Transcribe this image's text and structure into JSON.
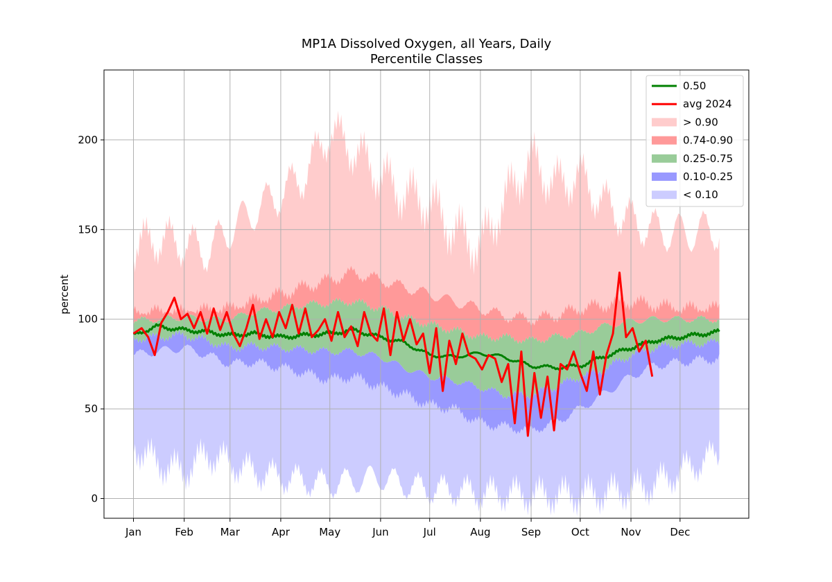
{
  "chart_data": {
    "type": "area",
    "title": "MP1A Dissolved Oxygen, all Years, Daily",
    "subtitle": "Percentile Classes",
    "ylabel": "percent",
    "xlabel": "",
    "ylim": [
      -11,
      239
    ],
    "yticks": [
      0,
      50,
      100,
      150,
      200
    ],
    "months": [
      "Jan",
      "Feb",
      "Mar",
      "Apr",
      "May",
      "Jun",
      "Jul",
      "Aug",
      "Sep",
      "Oct",
      "Nov",
      "Dec"
    ],
    "grid": true,
    "legend_position": "top-right",
    "legend": [
      {
        "label": "0.50",
        "kind": "line",
        "color": "#008000"
      },
      {
        "label": "avg 2024",
        "kind": "line",
        "color": "#ff0000"
      },
      {
        "label": "> 0.90",
        "kind": "patch",
        "color": "#ffcccc"
      },
      {
        "label": "0.74-0.90",
        "kind": "patch",
        "color": "#ff9999"
      },
      {
        "label": "0.25-0.75",
        "kind": "patch",
        "color": "#99cc99"
      },
      {
        "label": "0.10-0.25",
        "kind": "patch",
        "color": "#9999ff"
      },
      {
        "label": "< 0.10",
        "kind": "patch",
        "color": "#ccccff"
      }
    ],
    "control_points": {
      "day": [
        1,
        15,
        32,
        46,
        60,
        74,
        91,
        105,
        121,
        135,
        152,
        166,
        182,
        196,
        213,
        227,
        244,
        258,
        274,
        288,
        305,
        319,
        335,
        359
      ],
      "p00": [
        30,
        20,
        15,
        25,
        20,
        15,
        12,
        10,
        8,
        10,
        12,
        8,
        5,
        5,
        3,
        3,
        2,
        2,
        2,
        3,
        5,
        8,
        15,
        25
      ],
      "p10": [
        80,
        82,
        84,
        80,
        75,
        76,
        73,
        70,
        66,
        68,
        62,
        58,
        52,
        50,
        42,
        40,
        38,
        42,
        50,
        58,
        68,
        74,
        76,
        78
      ],
      "p25": [
        89,
        90,
        91,
        88,
        84,
        85,
        84,
        83,
        82,
        82,
        79,
        73,
        68,
        66,
        62,
        58,
        58,
        62,
        68,
        72,
        80,
        84,
        86,
        87
      ],
      "p75": [
        99,
        100,
        101,
        100,
        100,
        104,
        106,
        108,
        109,
        110,
        106,
        101,
        97,
        94,
        90,
        90,
        88,
        90,
        92,
        96,
        99,
        100,
        100,
        100
      ],
      "p90": [
        104,
        104,
        104,
        105,
        106,
        110,
        114,
        118,
        122,
        126,
        122,
        118,
        114,
        110,
        106,
        102,
        100,
        102,
        106,
        108,
        110,
        108,
        106,
        106
      ],
      "p100": [
        140,
        145,
        142,
        138,
        150,
        160,
        170,
        180,
        205,
        195,
        180,
        170,
        165,
        150,
        140,
        165,
        190,
        175,
        180,
        165,
        155,
        150,
        148,
        150
      ],
      "median": [
        91,
        96,
        94,
        93,
        91,
        92,
        90,
        91,
        92,
        94,
        90,
        87,
        80,
        79,
        81,
        79,
        74,
        73,
        74,
        79,
        84,
        88,
        90,
        93
      ]
    },
    "avg_2024": {
      "day": [
        1,
        6,
        10,
        14,
        18,
        22,
        26,
        30,
        34,
        38,
        42,
        46,
        50,
        54,
        58,
        62,
        66,
        70,
        74,
        78,
        82,
        86,
        90,
        94,
        98,
        102,
        106,
        110,
        114,
        118,
        122,
        126,
        130,
        134,
        138,
        142,
        146,
        150,
        154,
        158,
        162,
        166,
        170,
        174,
        178,
        182,
        186,
        190,
        194,
        198,
        202,
        206,
        210,
        214,
        218,
        222,
        226,
        230,
        234,
        238,
        242,
        246,
        250,
        254,
        258,
        262,
        266,
        270,
        274,
        278,
        282,
        286,
        290,
        294,
        298,
        302,
        306,
        310,
        314,
        318
      ],
      "value": [
        92,
        95,
        90,
        80,
        98,
        104,
        112,
        100,
        103,
        95,
        104,
        92,
        106,
        94,
        104,
        92,
        85,
        95,
        108,
        89,
        100,
        90,
        104,
        95,
        108,
        92,
        106,
        90,
        94,
        100,
        88,
        104,
        90,
        96,
        85,
        104,
        92,
        88,
        106,
        80,
        104,
        88,
        100,
        86,
        92,
        70,
        95,
        60,
        88,
        75,
        92,
        80,
        78,
        72,
        80,
        78,
        65,
        75,
        42,
        82,
        35,
        70,
        45,
        68,
        38,
        75,
        72,
        82,
        70,
        60,
        82,
        58,
        80,
        92,
        126,
        90,
        95,
        82,
        88,
        68
      ]
    }
  }
}
